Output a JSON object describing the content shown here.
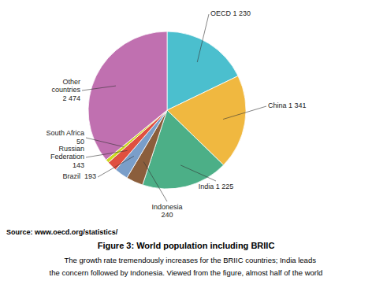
{
  "chart_data": {
    "type": "pie",
    "title": "Figure 3: World population including BRIIC",
    "categories": [
      "OECD 1 230",
      "China 1 341",
      "India 1 225",
      "Indonesia\n240",
      "Brazil  193",
      "Russian\nFederation\n143",
      "South Africa\n50",
      "Other\ncountries\n2 474"
    ],
    "values": [
      1230,
      1341,
      1225,
      240,
      193,
      143,
      50,
      2474
    ],
    "colors": [
      "#4bbfce",
      "#f0b840",
      "#4caf87",
      "#8b5e3c",
      "#7a9ec9",
      "#e05040",
      "#ccd820",
      "#c070b0"
    ],
    "annotations": [
      "Source: www.oecd.org/statistics/",
      "    The growth rate tremendously increases for the BRIIC countries; India leads",
      "the concern followed by Indonesia. Viewed from the figure, almost half of the world"
    ]
  }
}
